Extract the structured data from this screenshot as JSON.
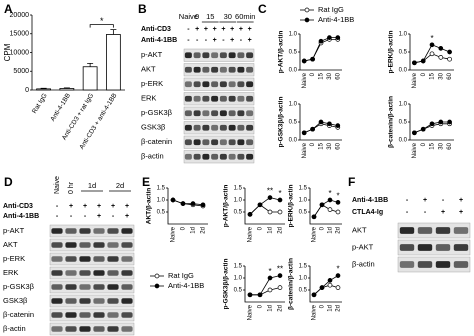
{
  "panel_labels": [
    "A",
    "B",
    "C",
    "D",
    "E",
    "F"
  ],
  "chart_data": [
    {
      "type": "bar",
      "ylabel": "CPM",
      "categories": [
        "Rat IgG",
        "Anti-4-1BB",
        "Anti-CD3 + rat IgG",
        "Anti-CD3 + anti-4-1BB"
      ],
      "values": [
        300,
        400,
        6200,
        14800
      ],
      "errors": [
        150,
        150,
        900,
        1300
      ],
      "color": "#ffffff",
      "ylim": [
        0,
        20000
      ],
      "yticks": [
        0,
        5000,
        10000,
        15000,
        20000
      ],
      "annotation": "*"
    },
    {
      "type": "line",
      "ylabel": "p-AKT/β-actin",
      "categories": [
        "Naive",
        "0",
        "15",
        "30",
        "60"
      ],
      "series": [
        {
          "name": "Rat IgG",
          "color": "#ffffff",
          "values": [
            0.25,
            0.3,
            0.75,
            0.85,
            0.85
          ]
        },
        {
          "name": "Anti-4-1BB",
          "color": "#000000",
          "values": [
            0.25,
            0.3,
            0.8,
            0.9,
            0.9
          ]
        }
      ],
      "ylim": [
        0,
        1
      ],
      "yticks": [
        {
          "value": 0,
          "label": "0.0"
        },
        0.5,
        {
          "value": 1,
          "label": "1.0"
        }
      ],
      "annotations": [
        null,
        null,
        null,
        null,
        null
      ]
    },
    {
      "type": "line",
      "ylabel": "p-ERK/β-actin",
      "categories": [
        "Naive",
        "0",
        "15",
        "30",
        "60"
      ],
      "series": [
        {
          "color": "#ffffff",
          "values": [
            0.2,
            0.25,
            0.45,
            0.35,
            0.3
          ]
        },
        {
          "color": "#000000",
          "values": [
            0.2,
            0.25,
            0.7,
            0.6,
            0.5
          ]
        }
      ],
      "ylim": [
        0,
        1
      ],
      "yticks": [
        {
          "value": 0,
          "label": "0.0"
        },
        0.5,
        {
          "value": 1,
          "label": "1.0"
        }
      ],
      "annotations": [
        null,
        null,
        "*",
        null,
        null
      ]
    },
    {
      "type": "line",
      "ylabel": "p-GSK3β/β-actin",
      "categories": [
        "Naive",
        "0",
        "15",
        "30",
        "60"
      ],
      "series": [
        {
          "color": "#ffffff",
          "values": [
            0.2,
            0.3,
            0.45,
            0.4,
            0.35
          ]
        },
        {
          "color": "#000000",
          "values": [
            0.2,
            0.3,
            0.5,
            0.45,
            0.4
          ]
        }
      ],
      "ylim": [
        0,
        1
      ],
      "yticks": [
        {
          "value": 0,
          "label": "0.0"
        },
        0.5,
        {
          "value": 1,
          "label": "1.0"
        }
      ],
      "annotations": [
        null,
        null,
        null,
        null,
        null
      ]
    },
    {
      "type": "line",
      "ylabel": "β-catenin/β-actin",
      "categories": [
        "Naive",
        "0",
        "15",
        "30",
        "60"
      ],
      "series": [
        {
          "color": "#ffffff",
          "values": [
            0.2,
            0.3,
            0.4,
            0.45,
            0.45
          ]
        },
        {
          "color": "#000000",
          "values": [
            0.2,
            0.3,
            0.45,
            0.5,
            0.5
          ]
        }
      ],
      "ylim": [
        0,
        1
      ],
      "yticks": [
        {
          "value": 0,
          "label": "0.0"
        },
        0.5,
        {
          "value": 1,
          "label": "1.0"
        }
      ],
      "annotations": [
        null,
        null,
        null,
        null,
        null
      ]
    },
    {
      "type": "line",
      "ylabel": "AKT/β-actin",
      "categories": [
        "Naive",
        "0",
        "1d",
        "2d"
      ],
      "series": [
        {
          "name": "Rat IgG",
          "color": "#ffffff",
          "values": [
            1.0,
            0.85,
            0.8,
            0.75
          ]
        },
        {
          "name": "Anti-4-1BB",
          "color": "#000000",
          "values": [
            1.0,
            0.85,
            0.85,
            0.8
          ]
        }
      ],
      "ylim": [
        0,
        1.5
      ],
      "yticks": [
        0.5,
        {
          "value": 1,
          "label": "1.0"
        },
        1.5
      ],
      "annotations": [
        null,
        null,
        null,
        null
      ]
    },
    {
      "type": "line",
      "ylabel": "p-AKT/β-actin",
      "categories": [
        "Naive",
        "0",
        "1d",
        "2d"
      ],
      "series": [
        {
          "color": "#ffffff",
          "values": [
            0.4,
            0.8,
            0.5,
            0.5
          ]
        },
        {
          "color": "#000000",
          "values": [
            0.4,
            0.8,
            1.1,
            1.0
          ]
        }
      ],
      "ylim": [
        0,
        1.5
      ],
      "yticks": [
        0.5,
        {
          "value": 1,
          "label": "1.0"
        },
        1.5
      ],
      "annotations": [
        null,
        null,
        "**",
        "*"
      ]
    },
    {
      "type": "line",
      "ylabel": "p-ERK/β-actin",
      "categories": [
        "Naive",
        "0",
        "1d",
        "2d"
      ],
      "series": [
        {
          "color": "#ffffff",
          "values": [
            0.3,
            0.8,
            0.6,
            0.5
          ]
        },
        {
          "color": "#000000",
          "values": [
            0.3,
            0.8,
            1.0,
            0.9
          ]
        }
      ],
      "ylim": [
        0,
        1.5
      ],
      "yticks": [
        0.5,
        {
          "value": 1,
          "label": "1.0"
        },
        1.5
      ],
      "annotations": [
        null,
        null,
        "*",
        "*"
      ]
    },
    {
      "type": "line",
      "ylabel": "p-GSK3β/β-actin",
      "categories": [
        "Naive",
        "0",
        "1d",
        "2d"
      ],
      "series": [
        {
          "color": "#ffffff",
          "values": [
            0.3,
            0.3,
            0.5,
            0.6
          ]
        },
        {
          "color": "#000000",
          "values": [
            0.3,
            0.3,
            1.0,
            1.1
          ]
        }
      ],
      "ylim": [
        0,
        1.5
      ],
      "yticks": [
        0.5,
        {
          "value": 1,
          "label": "1.0"
        },
        1.5
      ],
      "annotations": [
        null,
        null,
        "*",
        "**"
      ]
    },
    {
      "type": "line",
      "ylabel": "β-catenin/β-actin",
      "categories": [
        "Naive",
        "0",
        "1d",
        "2d"
      ],
      "series": [
        {
          "color": "#ffffff",
          "values": [
            0.3,
            0.6,
            0.7,
            0.6
          ]
        },
        {
          "color": "#000000",
          "values": [
            0.3,
            0.6,
            0.9,
            1.1
          ]
        }
      ],
      "ylim": [
        0,
        1.5
      ],
      "yticks": [
        0.5,
        {
          "value": 1,
          "label": "1.0"
        },
        1.5
      ],
      "annotations": [
        null,
        null,
        null,
        "*"
      ]
    }
  ],
  "blots": {
    "B": {
      "header": [
        "Naive",
        "0",
        "15",
        "30",
        "60min"
      ],
      "conditions": [
        {
          "name": "Anti-CD3",
          "signs": [
            "-",
            "+",
            "+",
            "+",
            "+",
            "+",
            "+",
            "+"
          ]
        },
        {
          "name": "Anti-4-1BB",
          "signs": [
            "-",
            "-",
            "-",
            "+",
            "-",
            "+",
            "-",
            "+"
          ]
        }
      ],
      "rows": [
        "p-AKT",
        "AKT",
        "p-ERK",
        "ERK",
        "p-GSK3β",
        "GSK3β",
        "β-catenin",
        "β-actin"
      ]
    },
    "D": {
      "header": [
        "Naive",
        "0 hr",
        "1d",
        "2d"
      ],
      "conditions": [
        {
          "name": "Anti-CD3",
          "signs": [
            "-",
            "+",
            "+",
            "+",
            "+",
            "+"
          ]
        },
        {
          "name": "Anti-4-1BB",
          "signs": [
            "-",
            "-",
            "-",
            "+",
            "-",
            "+"
          ]
        }
      ],
      "rows": [
        "p-AKT",
        "AKT",
        "p-ERK",
        "ERK",
        "p-GSK3β",
        "GSK3β",
        "β-catenin",
        "β-actin"
      ]
    },
    "F": {
      "header": [],
      "conditions": [
        {
          "name": "Anti-4-1BB",
          "signs": [
            "-",
            "+",
            "-",
            "+"
          ]
        },
        {
          "name": "CTLA4-Ig",
          "signs": [
            "-",
            "-",
            "+",
            "+"
          ]
        }
      ],
      "rows": [
        "AKT",
        "p-AKT",
        "β-actin"
      ]
    }
  }
}
